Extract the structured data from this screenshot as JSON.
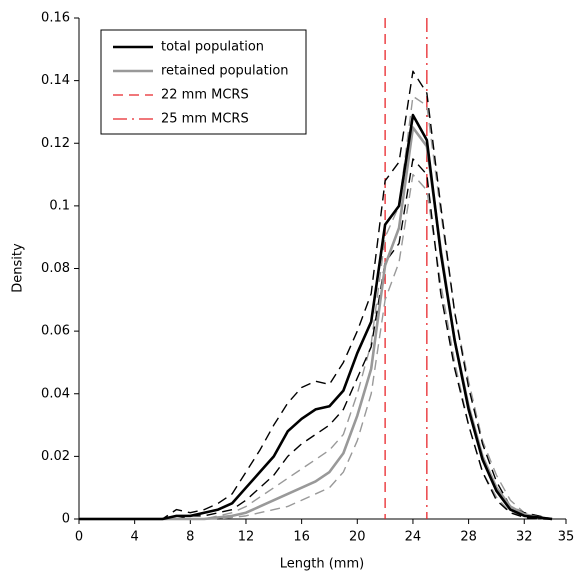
{
  "chart_data": {
    "type": "line",
    "x_label": "Length (mm)",
    "y_label": "Density",
    "x": [
      0,
      1,
      2,
      3,
      4,
      5,
      6,
      7,
      8,
      9,
      10,
      11,
      12,
      13,
      14,
      15,
      16,
      17,
      18,
      19,
      20,
      21,
      22,
      23,
      24,
      25,
      26,
      27,
      28,
      29,
      30,
      31,
      32,
      33,
      34
    ],
    "series": [
      {
        "name": "total population",
        "color": "#000000",
        "style": "solid",
        "values": [
          0,
          0,
          0,
          0,
          0,
          0,
          0,
          0.001,
          0.001,
          0.002,
          0.003,
          0.005,
          0.01,
          0.015,
          0.02,
          0.028,
          0.032,
          0.035,
          0.036,
          0.041,
          0.053,
          0.063,
          0.094,
          0.1,
          0.129,
          0.121,
          0.085,
          0.057,
          0.035,
          0.019,
          0.009,
          0.003,
          0.001,
          0.0005,
          0
        ]
      },
      {
        "name": "retained population",
        "color": "#999999",
        "style": "solid",
        "values": [
          0,
          0,
          0,
          0,
          0,
          0,
          0,
          0,
          0,
          0,
          0.0005,
          0.001,
          0.002,
          0.004,
          0.006,
          0.008,
          0.01,
          0.012,
          0.015,
          0.021,
          0.033,
          0.048,
          0.081,
          0.093,
          0.125,
          0.119,
          0.086,
          0.057,
          0.036,
          0.02,
          0.01,
          0.004,
          0.0015,
          0.0005,
          0
        ]
      },
      {
        "color": "#000000",
        "style": "dashed",
        "values": [
          0,
          0,
          0,
          0,
          0,
          0,
          0,
          0.003,
          0.002,
          0.003,
          0.005,
          0.008,
          0.015,
          0.022,
          0.03,
          0.037,
          0.042,
          0.044,
          0.043,
          0.05,
          0.06,
          0.072,
          0.108,
          0.114,
          0.143,
          0.136,
          0.1,
          0.066,
          0.042,
          0.024,
          0.012,
          0.004,
          0.002,
          0.001,
          0
        ]
      },
      {
        "color": "#000000",
        "style": "dashed",
        "values": [
          0,
          0,
          0,
          0,
          0,
          0,
          0,
          0,
          0.001,
          0.001,
          0.002,
          0.003,
          0.006,
          0.01,
          0.014,
          0.02,
          0.024,
          0.027,
          0.03,
          0.035,
          0.045,
          0.055,
          0.082,
          0.088,
          0.115,
          0.11,
          0.072,
          0.048,
          0.03,
          0.015,
          0.006,
          0.002,
          0.0005,
          0,
          0
        ]
      },
      {
        "color": "#999999",
        "style": "dashed",
        "values": [
          0,
          0,
          0,
          0,
          0,
          0,
          0,
          0,
          0,
          0,
          0.001,
          0.002,
          0.004,
          0.007,
          0.01,
          0.013,
          0.016,
          0.019,
          0.022,
          0.027,
          0.04,
          0.056,
          0.09,
          0.1,
          0.135,
          0.132,
          0.098,
          0.066,
          0.044,
          0.025,
          0.014,
          0.006,
          0.002,
          0.001,
          0
        ]
      },
      {
        "color": "#999999",
        "style": "dashed",
        "values": [
          0,
          0,
          0,
          0,
          0,
          0,
          0,
          0,
          0,
          0,
          0,
          0.0005,
          0.001,
          0.002,
          0.003,
          0.004,
          0.006,
          0.008,
          0.01,
          0.015,
          0.025,
          0.04,
          0.07,
          0.082,
          0.11,
          0.105,
          0.075,
          0.05,
          0.03,
          0.015,
          0.007,
          0.002,
          0.001,
          0,
          0
        ]
      }
    ],
    "vlines": [
      {
        "name": "22 mm MCRS",
        "x": 22,
        "color": "#e8262b",
        "style": "dashed"
      },
      {
        "name": "25 mm MCRS",
        "x": 25,
        "color": "#e8262b",
        "style": "dashdot"
      }
    ],
    "xlim": [
      0,
      35
    ],
    "xticks": [
      0,
      4,
      8,
      12,
      16,
      20,
      24,
      28,
      32,
      35
    ],
    "ylim": [
      0,
      0.16
    ],
    "yticks": [
      0,
      0.02,
      0.04,
      0.06,
      0.08,
      0.1,
      0.12,
      0.14,
      0.16
    ],
    "grid": false,
    "legend": "top-left"
  }
}
